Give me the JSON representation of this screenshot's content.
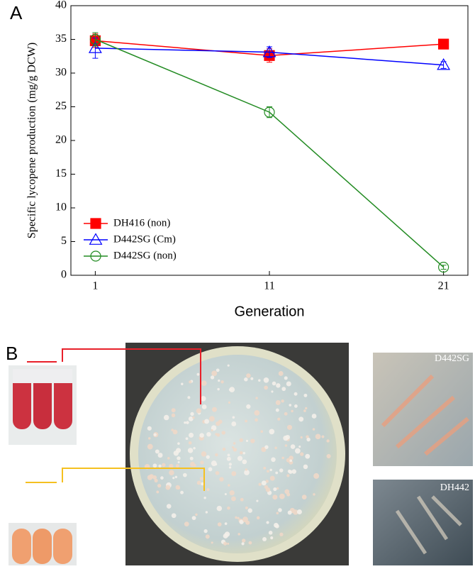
{
  "panel_a": "A",
  "panel_b": "B",
  "chart_data": {
    "type": "line",
    "ylabel": "Specific lycopene production (mg/g DCW)",
    "xlabel": "Generation",
    "x": [
      1,
      11,
      21
    ],
    "xlim": [
      -0.4,
      22.4
    ],
    "ylim": [
      0,
      40
    ],
    "xticks": [
      1,
      11,
      21
    ],
    "yticks": [
      0,
      5,
      10,
      15,
      20,
      25,
      30,
      35,
      40
    ],
    "legend": "lower left",
    "series": [
      {
        "name": "DH416 (non)",
        "color": "#ff0000",
        "marker": "square",
        "filled": true,
        "values": [
          34.8,
          32.6,
          34.3
        ],
        "errors": [
          1.0,
          1.0,
          0.3
        ]
      },
      {
        "name": "D442SG (Cm)",
        "color": "#0000ff",
        "marker": "triangle",
        "filled": false,
        "values": [
          33.7,
          33.1,
          31.2
        ],
        "errors": [
          1.5,
          0.8,
          0.5
        ]
      },
      {
        "name": "D442SG (non)",
        "color": "#228b22",
        "marker": "circle",
        "filled": false,
        "values": [
          35.0,
          24.2,
          1.2
        ],
        "errors": [
          1.0,
          0.8,
          0.3
        ]
      }
    ]
  },
  "photos": {
    "labels": [
      "D442SG",
      "DH442"
    ]
  }
}
